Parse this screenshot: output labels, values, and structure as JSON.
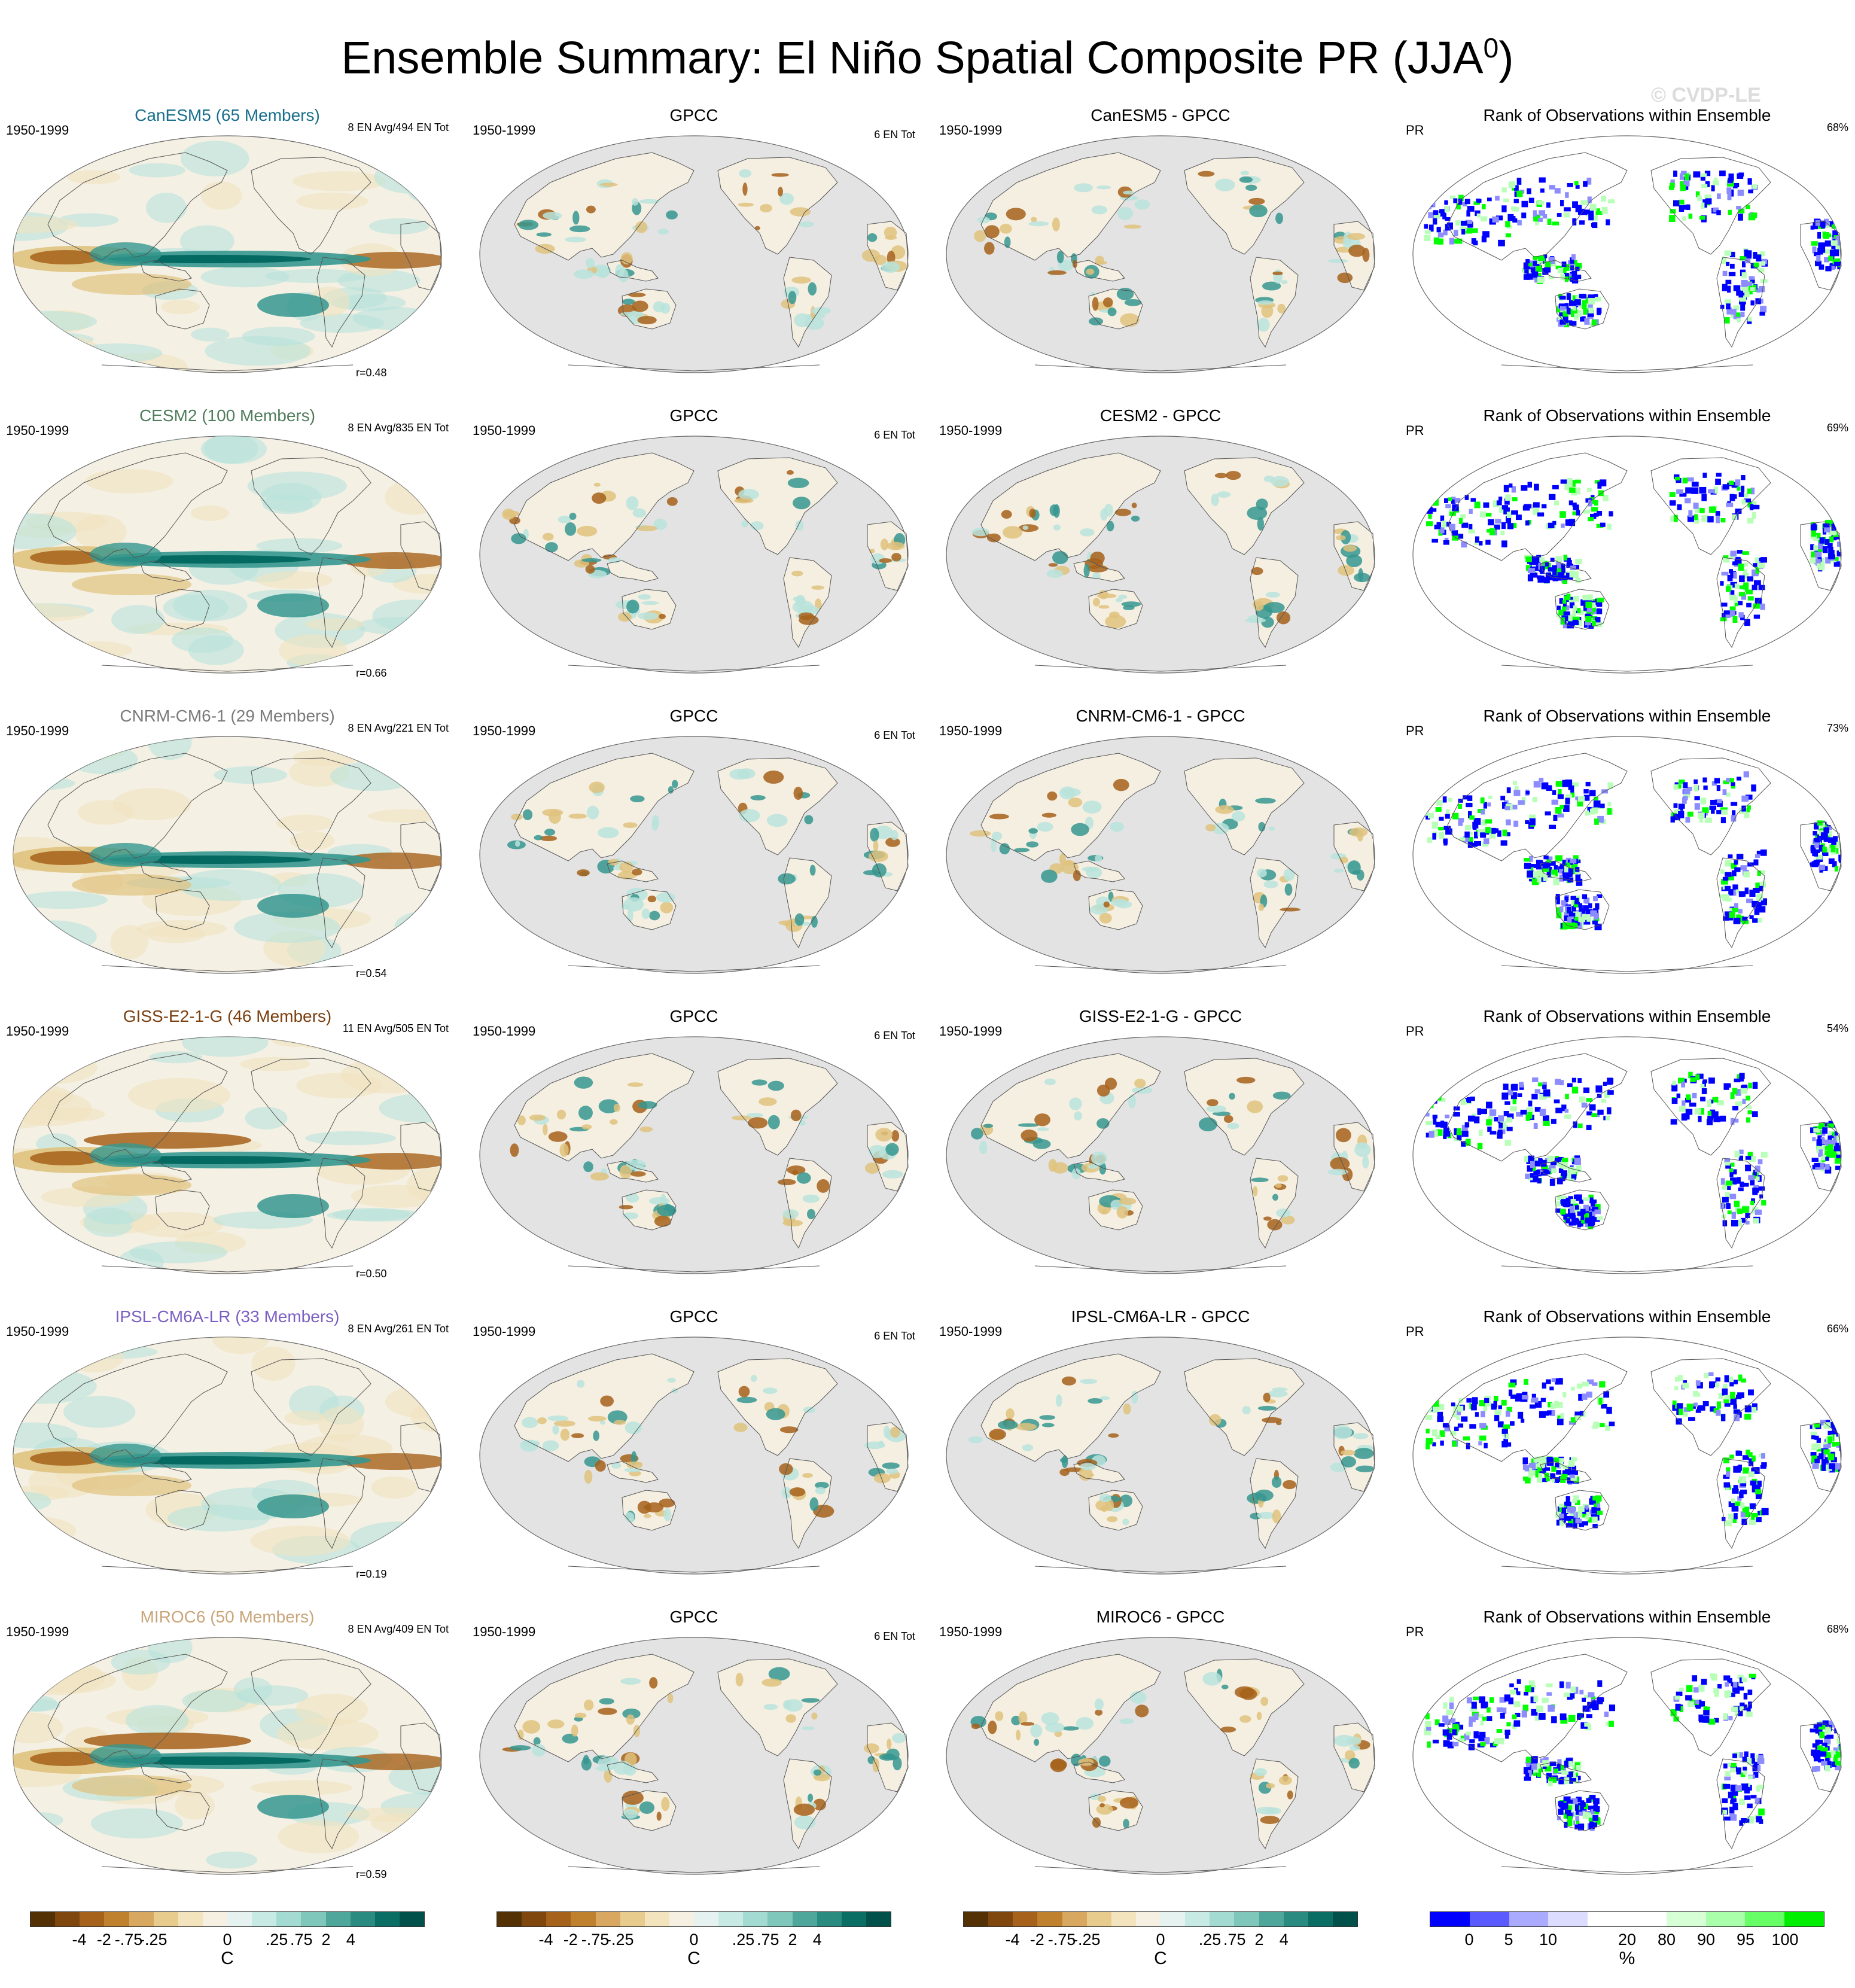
{
  "title": "Ensemble Summary: El Niño Spatial Composite PR (JJA",
  "title_sup": "0",
  "title_close": ")",
  "watermark": "© CVDP-LE",
  "colors": {
    "brown_dark": "#543005",
    "brown": "#a6611a",
    "tan": "#dfc27d",
    "light": "#f5f0e4",
    "teal_light": "#b8e3dc",
    "teal": "#35978f",
    "teal_dark": "#01665e",
    "land_gray": "#e3e3e3",
    "rank_blue": "#0000ff",
    "rank_green": "#00ff00"
  },
  "rows": [
    {
      "model": "CanESM5 (65 Members)",
      "model_color": "#1a6f8c",
      "period": "1950-1999",
      "count": "8 EN Avg/494 EN Tot",
      "r": "r=0.48",
      "gpcc_count": "6 EN Tot",
      "diff_title": "CanESM5 - GPCC",
      "rank_pct": "68%"
    },
    {
      "model": "CESM2 (100 Members)",
      "model_color": "#4f7d5b",
      "period": "1950-1999",
      "count": "8 EN Avg/835 EN Tot",
      "r": "r=0.66",
      "gpcc_count": "6 EN Tot",
      "diff_title": "CESM2 - GPCC",
      "rank_pct": "69%"
    },
    {
      "model": "CNRM-CM6-1 (29 Members)",
      "model_color": "#7a7a7a",
      "period": "1950-1999",
      "count": "8 EN Avg/221 EN Tot",
      "r": "r=0.54",
      "gpcc_count": "6 EN Tot",
      "diff_title": "CNRM-CM6-1 - GPCC",
      "rank_pct": "73%"
    },
    {
      "model": "GISS-E2-1-G (46 Members)",
      "model_color": "#7a3f0f",
      "period": "1950-1999",
      "count": "11 EN Avg/505 EN Tot",
      "r": "r=0.50",
      "gpcc_count": "6 EN Tot",
      "diff_title": "GISS-E2-1-G - GPCC",
      "rank_pct": "54%"
    },
    {
      "model": "IPSL-CM6A-LR (33 Members)",
      "model_color": "#7b5fc4",
      "period": "1950-1999",
      "count": "8 EN Avg/261 EN Tot",
      "r": "r=0.19",
      "gpcc_count": "6 EN Tot",
      "diff_title": "IPSL-CM6A-LR - GPCC",
      "rank_pct": "66%"
    },
    {
      "model": "MIROC6 (50 Members)",
      "model_color": "#c9a57a",
      "period": "1950-1999",
      "count": "8 EN Avg/409 EN Tot",
      "r": "r=0.59",
      "gpcc_count": "6 EN Tot",
      "diff_title": "MIROC6 - GPCC",
      "rank_pct": "68%"
    }
  ],
  "gpcc_title": "GPCC",
  "rank_title": "Rank of Observations within Ensemble",
  "rank_var": "PR",
  "colorbar_div": {
    "colors": [
      "#543005",
      "#7f470d",
      "#a6611a",
      "#bf812d",
      "#d9a860",
      "#e8cc8e",
      "#f3e4bd",
      "#f6f0e3",
      "#e6f2ef",
      "#c7eae5",
      "#a3dbd2",
      "#7fc6bb",
      "#4fa79b",
      "#2a8b80",
      "#0b6e65",
      "#01504a"
    ],
    "labels": [
      "-4",
      "-2",
      "-.75",
      "-.25",
      "0",
      ".25",
      ".75",
      "2",
      "4"
    ],
    "unit": "C"
  },
  "colorbar_rank": {
    "colors": [
      "#0000ff",
      "#5a5aff",
      "#aaaaff",
      "#dcdcff",
      "#ffffff",
      "#ffffff",
      "#d6ffd6",
      "#aaffaa",
      "#66ff66",
      "#00ee00"
    ],
    "labels": [
      "0",
      "5",
      "10",
      "20",
      "80",
      "90",
      "95",
      "100"
    ],
    "unit": "%"
  }
}
